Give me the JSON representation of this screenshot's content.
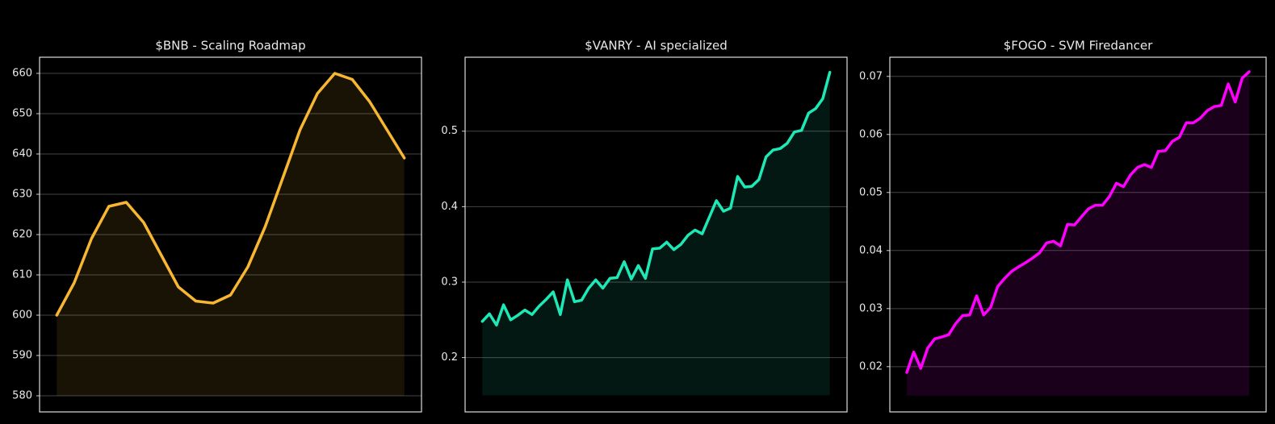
{
  "chart_data": [
    {
      "type": "line",
      "title": "$BNB - Scaling Roadmap",
      "color": "#f7b731",
      "fill_base": 580,
      "ylim": [
        576,
        664
      ],
      "yticks": [
        580,
        590,
        600,
        610,
        620,
        630,
        640,
        650,
        660
      ],
      "grid": true,
      "values": [
        600,
        608,
        619,
        627,
        628,
        623,
        615,
        607,
        603.5,
        603,
        605,
        612,
        622,
        634,
        646,
        655,
        660,
        658.5,
        653,
        646,
        639
      ]
    },
    {
      "type": "line",
      "title": "$VANRY - AI specialized",
      "color": "#1de9b6",
      "fill_base": 0.15,
      "ylim": [
        0.128,
        0.598
      ],
      "yticks": [
        0.2,
        0.3,
        0.4,
        0.5
      ],
      "grid": true,
      "values": [
        0.248,
        0.258,
        0.243,
        0.27,
        0.25,
        0.256,
        0.263,
        0.257,
        0.268,
        0.277,
        0.287,
        0.257,
        0.303,
        0.274,
        0.276,
        0.292,
        0.303,
        0.292,
        0.305,
        0.306,
        0.327,
        0.304,
        0.322,
        0.305,
        0.344,
        0.345,
        0.353,
        0.343,
        0.35,
        0.362,
        0.369,
        0.364,
        0.386,
        0.408,
        0.394,
        0.398,
        0.44,
        0.426,
        0.427,
        0.436,
        0.466,
        0.475,
        0.477,
        0.484,
        0.499,
        0.501,
        0.524,
        0.53,
        0.543,
        0.578
      ]
    },
    {
      "type": "line",
      "title": "$FOGO - SVM Firedancer",
      "color": "#ff00ff",
      "fill_base": 0.015,
      "ylim": [
        0.0122,
        0.0733
      ],
      "yticks": [
        0.02,
        0.03,
        0.04,
        0.05,
        0.06,
        0.07
      ],
      "grid": true,
      "values": [
        0.019,
        0.0225,
        0.0197,
        0.0232,
        0.0248,
        0.0251,
        0.0255,
        0.0274,
        0.0288,
        0.0289,
        0.0322,
        0.0289,
        0.0302,
        0.0338,
        0.0352,
        0.0364,
        0.0372,
        0.0379,
        0.0387,
        0.0396,
        0.0413,
        0.0416,
        0.0408,
        0.0445,
        0.0444,
        0.0458,
        0.0472,
        0.0478,
        0.0478,
        0.0493,
        0.0516,
        0.051,
        0.053,
        0.0543,
        0.0548,
        0.0543,
        0.0571,
        0.0572,
        0.0588,
        0.0595,
        0.062,
        0.062,
        0.0628,
        0.0641,
        0.0648,
        0.065,
        0.0687,
        0.0656,
        0.0697,
        0.0708
      ]
    }
  ]
}
